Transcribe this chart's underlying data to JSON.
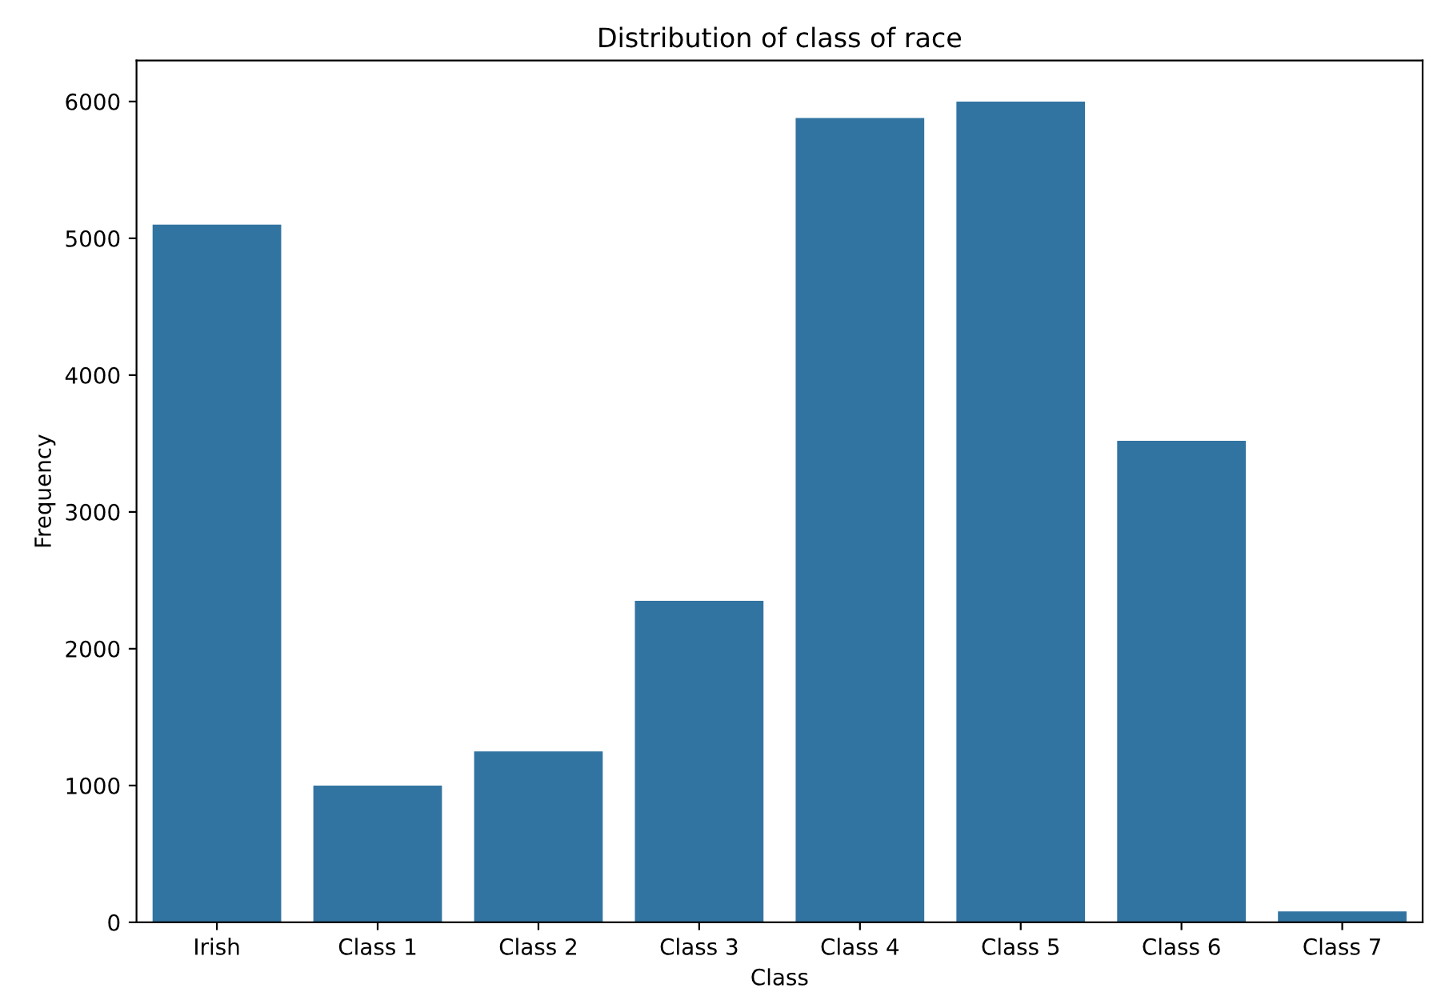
{
  "chart_data": {
    "type": "bar",
    "title": "Distribution of class of race",
    "xlabel": "Class",
    "ylabel": "Frequency",
    "categories": [
      "Irish",
      "Class 1",
      "Class 2",
      "Class 3",
      "Class 4",
      "Class 5",
      "Class 6",
      "Class 7"
    ],
    "values": [
      5100,
      1000,
      1250,
      2350,
      5880,
      6000,
      3520,
      80
    ],
    "color": "#3274a1",
    "ylim": [
      0,
      6300
    ],
    "yticks": [
      0,
      1000,
      2000,
      3000,
      4000,
      5000,
      6000
    ],
    "grid": false,
    "legend": false
  }
}
